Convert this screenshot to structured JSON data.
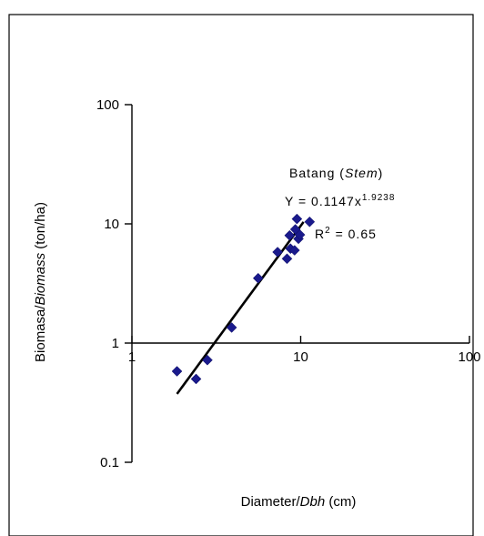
{
  "chart_data": {
    "type": "scatter",
    "x_scale": "log",
    "y_scale": "log",
    "xlim": [
      1,
      100
    ],
    "ylim": [
      0.1,
      100
    ],
    "x_ticks": [
      {
        "value": 1,
        "label": "1"
      },
      {
        "value": 10,
        "label": "10"
      },
      {
        "value": 100,
        "label": "100"
      }
    ],
    "y_ticks": [
      {
        "value": 0.1,
        "label": "0.1"
      },
      {
        "value": 1,
        "label": "1"
      },
      {
        "value": 10,
        "label": "10"
      },
      {
        "value": 100,
        "label": "100"
      }
    ],
    "xlabel": {
      "plain": "Diameter/",
      "italic": "Dbh",
      "unit": " (cm)"
    },
    "ylabel": {
      "plain": "Biomasa/",
      "italic": "Biomass",
      "unit": "  (ton/ha)"
    },
    "grid": false,
    "marker_color": "#1a1a8c",
    "line_color": "#000000",
    "points": [
      {
        "x": 1.85,
        "y": 0.58
      },
      {
        "x": 2.4,
        "y": 0.5
      },
      {
        "x": 2.8,
        "y": 0.72
      },
      {
        "x": 3.9,
        "y": 1.35
      },
      {
        "x": 5.6,
        "y": 3.5
      },
      {
        "x": 7.3,
        "y": 5.8
      },
      {
        "x": 8.3,
        "y": 5.1
      },
      {
        "x": 8.7,
        "y": 6.2
      },
      {
        "x": 9.2,
        "y": 6.0
      },
      {
        "x": 8.6,
        "y": 8.0
      },
      {
        "x": 9.7,
        "y": 7.5
      },
      {
        "x": 9.9,
        "y": 8.1
      },
      {
        "x": 9.3,
        "y": 9.0
      },
      {
        "x": 9.5,
        "y": 11.0
      },
      {
        "x": 11.3,
        "y": 10.4
      }
    ],
    "trendline": {
      "coef": 0.1147,
      "exp": 1.9238,
      "x_range": [
        1.85,
        10.4
      ]
    },
    "annotations": {
      "series": {
        "plain": "Batang (",
        "italic": "Stem",
        "close": ")"
      },
      "equation": {
        "base": "Y = 0.1147x",
        "sup": "1.9238"
      },
      "r2": {
        "base": "R",
        "sup": "2",
        "rest": " = 0.65"
      }
    }
  }
}
